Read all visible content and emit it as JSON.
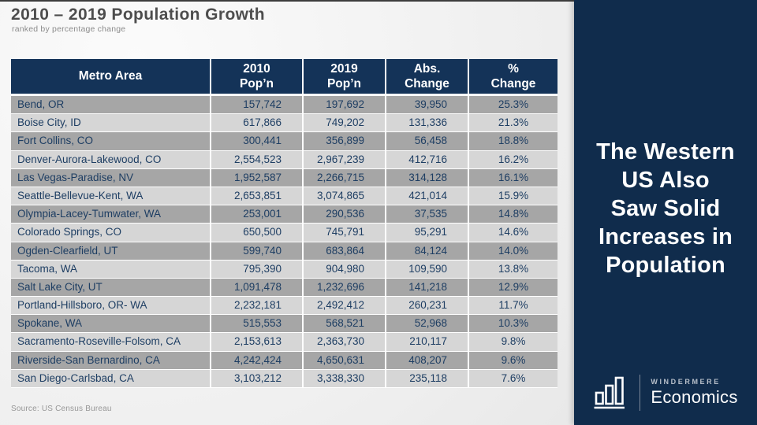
{
  "slide": {
    "title": "2010 – 2019 Population Growth",
    "subtitle": "ranked by percentage change",
    "source": "Source: US Census Bureau"
  },
  "table": {
    "headers": [
      [
        "Metro Area"
      ],
      [
        "2010",
        "Pop’n"
      ],
      [
        "2019",
        "Pop’n"
      ],
      [
        "Abs.",
        "Change"
      ],
      [
        "%",
        "Change"
      ]
    ],
    "rows": [
      [
        "Bend, OR",
        "157,742",
        "197,692",
        "39,950",
        "25.3%"
      ],
      [
        "Boise City, ID",
        "617,866",
        "749,202",
        "131,336",
        "21.3%"
      ],
      [
        "Fort Collins, CO",
        "300,441",
        "356,899",
        "56,458",
        "18.8%"
      ],
      [
        "Denver-Aurora-Lakewood, CO",
        "2,554,523",
        "2,967,239",
        "412,716",
        "16.2%"
      ],
      [
        "Las Vegas-Paradise, NV",
        "1,952,587",
        "2,266,715",
        "314,128",
        "16.1%"
      ],
      [
        "Seattle-Bellevue-Kent, WA",
        "2,653,851",
        "3,074,865",
        "421,014",
        "15.9%"
      ],
      [
        "Olympia-Lacey-Tumwater, WA",
        "253,001",
        "290,536",
        "37,535",
        "14.8%"
      ],
      [
        "Colorado Springs, CO",
        "650,500",
        "745,791",
        "95,291",
        "14.6%"
      ],
      [
        "Ogden-Clearfield, UT",
        "599,740",
        "683,864",
        "84,124",
        "14.0%"
      ],
      [
        "Tacoma, WA",
        "795,390",
        "904,980",
        "109,590",
        "13.8%"
      ],
      [
        "Salt Lake City, UT",
        "1,091,478",
        "1,232,696",
        "141,218",
        "12.9%"
      ],
      [
        "Portland-Hillsboro, OR- WA",
        "2,232,181",
        "2,492,412",
        "260,231",
        "11.7%"
      ],
      [
        "Spokane, WA",
        "515,553",
        "568,521",
        "52,968",
        "10.3%"
      ],
      [
        "Sacramento-Roseville-Folsom, CA",
        "2,153,613",
        "2,363,730",
        "210,117",
        "9.8%"
      ],
      [
        "Riverside-San Bernardino, CA",
        "4,242,424",
        "4,650,631",
        "408,207",
        "9.6%"
      ],
      [
        "San Diego-Carlsbad, CA",
        "3,103,212",
        "3,338,330",
        "235,118",
        "7.6%"
      ]
    ]
  },
  "panel": {
    "headline_lines": [
      "The Western",
      "US Also",
      "Saw Solid",
      "Increases in",
      "Population"
    ],
    "logo": {
      "icon": "bar-chart-icon",
      "brand": "WINDERMERE",
      "division": "Economics"
    }
  },
  "colors": {
    "panel_navy": "#102c4c",
    "header_navy": "#143358",
    "row_dark": "#a6a6a6",
    "row_light": "#d6d6d6",
    "cell_text": "#1e3e63"
  }
}
